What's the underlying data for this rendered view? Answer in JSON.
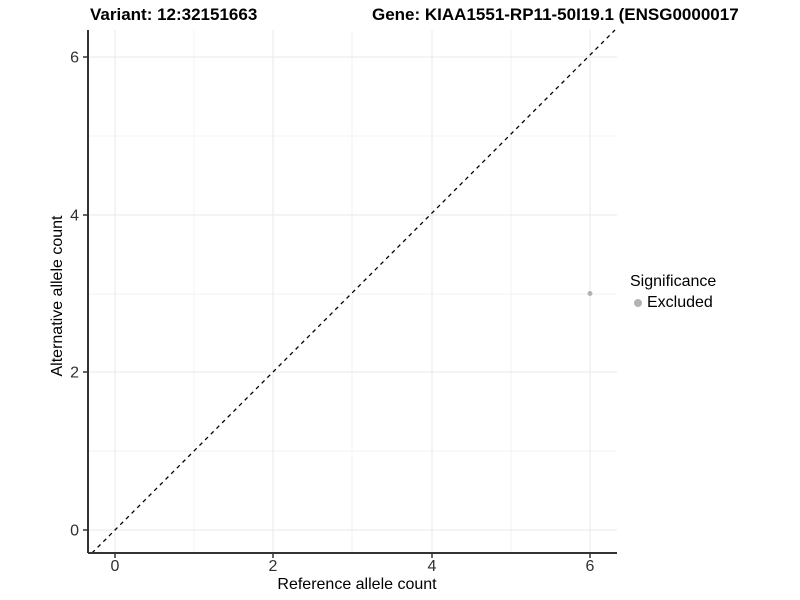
{
  "titles": {
    "variant": "Variant: 12:32151663",
    "gene": "Gene: KIAA1551-RP11-50I19.1 (ENSG0000017"
  },
  "chart_data": {
    "type": "scatter",
    "title": "Variant: 12:32151663",
    "subtitle": "Gene: KIAA1551-RP11-50I19.1 (ENSG0000017",
    "xlabel": "Reference allele count",
    "ylabel": "Alternative allele count",
    "x_ticks": [
      "0",
      "2",
      "4",
      "6"
    ],
    "y_ticks": [
      "0",
      "2",
      "4",
      "6"
    ],
    "xlim": [
      -0.34,
      6.34
    ],
    "ylim": [
      -0.3,
      6.34
    ],
    "grid": "on",
    "points": [
      {
        "x": 6,
        "y": 3,
        "series": "Excluded",
        "color": "#b3b3b3",
        "radius_px": 2.5
      }
    ],
    "identity_line": {
      "equation": "y = x",
      "style": "dashed",
      "color": "#000000"
    },
    "legend": {
      "title": "Significance",
      "position": "right",
      "entries": [
        {
          "label": "Excluded",
          "color": "#b3b3b3"
        }
      ]
    },
    "colors": {
      "background": "#ffffff",
      "grid_major": "#e8e8e8",
      "grid_minor": "#f3f3f3",
      "axis_line": "#333333",
      "tick_label": "#303030",
      "title_text": "#000000"
    }
  }
}
